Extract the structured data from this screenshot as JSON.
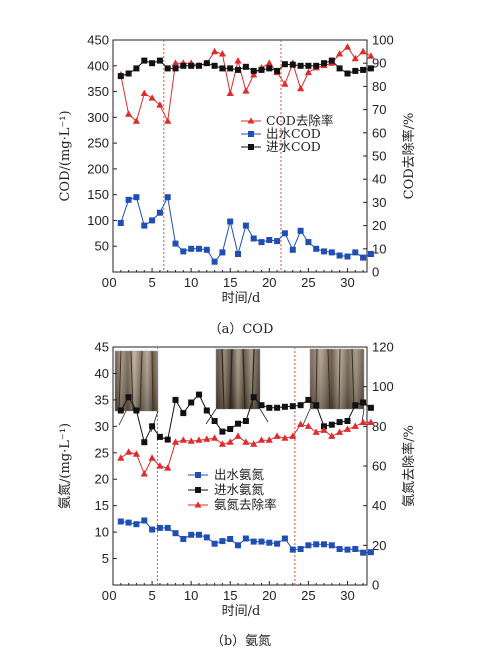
{
  "colors": {
    "red": "#e02b2b",
    "blue": "#1f4fb5",
    "black": "#111111",
    "guide": "#e0502a"
  },
  "chart_data": [
    {
      "type": "line",
      "caption": "（a）COD",
      "xlabel": "时间/d",
      "ylabel_left": "COD/(mg·L⁻¹)",
      "ylabel_right": "COD去除率/%",
      "xlim": [
        0,
        32.5
      ],
      "ylim_left": [
        0,
        450
      ],
      "ylim_right": [
        0,
        100
      ],
      "xticks": [
        0,
        5,
        10,
        15,
        20,
        25,
        30
      ],
      "yticks_left": [
        0,
        50,
        100,
        150,
        200,
        250,
        300,
        350,
        400,
        450
      ],
      "yticks_right": [
        0,
        10,
        20,
        30,
        40,
        50,
        60,
        70,
        80,
        90,
        100
      ],
      "phase_lines_x": [
        7,
        22
      ],
      "legend_position": "middle-right",
      "series": [
        {
          "name": "COD去除率",
          "axis": "right",
          "marker": "triangle",
          "color": "#e02b2b",
          "x": [
            1,
            2,
            3,
            4,
            5,
            6,
            7,
            8,
            9,
            10,
            11,
            12,
            13,
            14,
            15,
            16,
            17,
            18,
            19,
            20,
            21,
            22,
            23,
            24,
            25,
            26,
            27,
            28,
            29,
            30,
            31,
            32,
            33
          ],
          "y": [
            85,
            68,
            65,
            77,
            75,
            72,
            65,
            90,
            90,
            90,
            89,
            90,
            95,
            94,
            77,
            91,
            78,
            85,
            88,
            90,
            86,
            81,
            90,
            79,
            86,
            88,
            89,
            90,
            94,
            97,
            92,
            95,
            93
          ]
        },
        {
          "name": "出水COD",
          "axis": "left",
          "marker": "square",
          "color": "#1f4fb5",
          "x": [
            1,
            2,
            3,
            4,
            5,
            6,
            7,
            8,
            9,
            10,
            11,
            12,
            13,
            14,
            15,
            16,
            17,
            18,
            19,
            20,
            21,
            22,
            23,
            24,
            25,
            26,
            27,
            28,
            29,
            30,
            31,
            32,
            33
          ],
          "y": [
            95,
            140,
            145,
            90,
            100,
            115,
            145,
            55,
            40,
            45,
            45,
            43,
            20,
            38,
            98,
            35,
            90,
            65,
            58,
            62,
            60,
            75,
            43,
            80,
            58,
            45,
            40,
            38,
            32,
            30,
            38,
            28,
            35
          ]
        },
        {
          "name": "进水COD",
          "axis": "left",
          "marker": "square",
          "color": "#111111",
          "x": [
            1,
            2,
            3,
            4,
            5,
            6,
            7,
            8,
            9,
            10,
            11,
            12,
            13,
            14,
            15,
            16,
            17,
            18,
            19,
            20,
            21,
            22,
            23,
            24,
            25,
            26,
            27,
            28,
            29,
            30,
            31,
            32,
            33
          ],
          "y": [
            380,
            385,
            395,
            410,
            405,
            410,
            395,
            395,
            400,
            400,
            400,
            405,
            400,
            395,
            395,
            392,
            398,
            390,
            392,
            395,
            390,
            403,
            402,
            400,
            400,
            400,
            405,
            410,
            395,
            385,
            390,
            392,
            395
          ]
        }
      ]
    },
    {
      "type": "line",
      "caption": "（b）氨氮",
      "xlabel": "时间/d",
      "ylabel_left": "氨氮/(mg·L⁻¹)",
      "ylabel_right": "氨氮去除率/%",
      "xlim": [
        0,
        32.5
      ],
      "ylim_left": [
        0,
        45
      ],
      "ylim_right": [
        0,
        120
      ],
      "xticks": [
        0,
        5,
        10,
        15,
        20,
        25,
        30
      ],
      "yticks_left": [
        0,
        5,
        10,
        15,
        20,
        25,
        30,
        35,
        40,
        45
      ],
      "yticks_right": [
        0,
        20,
        40,
        60,
        80,
        100,
        120
      ],
      "phase_lines_x": [
        7,
        24
      ],
      "legend_position": "middle-right",
      "series": [
        {
          "name": "出水氨氮",
          "axis": "left",
          "marker": "square",
          "color": "#1f4fb5",
          "x": [
            1,
            2,
            3,
            4,
            5,
            6,
            7,
            8,
            9,
            10,
            11,
            12,
            13,
            14,
            15,
            16,
            17,
            18,
            19,
            20,
            21,
            22,
            23,
            24,
            25,
            26,
            27,
            28,
            29,
            30,
            31,
            32,
            33
          ],
          "y": [
            12,
            11.8,
            11.5,
            12.2,
            10.5,
            10.8,
            10.8,
            9.8,
            8.7,
            9.5,
            9.5,
            9,
            7.8,
            8.3,
            8.7,
            7.5,
            8.8,
            8.2,
            8.2,
            8,
            7.8,
            8.8,
            6.7,
            6.8,
            7.5,
            7.7,
            7.7,
            7.5,
            6.8,
            6.7,
            6.8,
            6.1,
            6.2
          ]
        },
        {
          "name": "进水氨氮",
          "axis": "left",
          "marker": "square",
          "color": "#111111",
          "x": [
            1,
            2,
            3,
            4,
            5,
            6,
            7,
            8,
            9,
            10,
            11,
            12,
            13,
            14,
            15,
            16,
            17,
            18,
            19,
            20,
            21,
            22,
            23,
            24,
            25,
            26,
            27,
            28,
            29,
            30,
            31,
            32,
            33
          ],
          "y": [
            33,
            35.5,
            33,
            27,
            30,
            28,
            27.5,
            35,
            32.5,
            34.5,
            36,
            33,
            31,
            29,
            29.5,
            30.5,
            31,
            35.5,
            34,
            33.5,
            33.5,
            33.7,
            33.8,
            34,
            35,
            34,
            30,
            30.3,
            30.8,
            31,
            34,
            34.5,
            33.5
          ]
        },
        {
          "name": "氨氮去除率",
          "axis": "right",
          "marker": "triangle",
          "color": "#e02b2b",
          "x": [
            1,
            2,
            3,
            4,
            5,
            6,
            7,
            8,
            9,
            10,
            11,
            12,
            13,
            14,
            15,
            16,
            17,
            18,
            19,
            20,
            21,
            22,
            23,
            24,
            25,
            26,
            27,
            28,
            29,
            30,
            31,
            32,
            33
          ],
          "y": [
            64,
            67,
            66,
            56,
            64,
            60,
            59,
            72,
            73,
            72.5,
            73,
            73.5,
            74,
            71,
            72,
            75,
            72,
            71,
            73,
            73,
            75,
            74,
            75,
            81,
            80,
            77,
            78,
            75,
            77,
            78.5,
            80,
            82,
            82
          ]
        }
      ]
    }
  ]
}
